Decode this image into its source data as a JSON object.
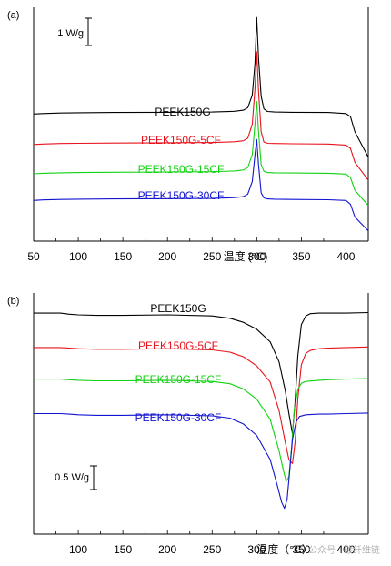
{
  "chart_data": [
    {
      "type": "line",
      "panel_label": "(a)",
      "title": "",
      "xlabel": "温度 (°C)",
      "ylabel": "",
      "xlim": [
        50,
        425
      ],
      "x_ticks": [
        50,
        100,
        150,
        200,
        250,
        300,
        350,
        400
      ],
      "grid": false,
      "scale_bar": {
        "label": "1 W/g",
        "size": 1
      },
      "series": [
        {
          "name": "PEEK150G",
          "color": "#000000",
          "x": [
            50,
            60,
            80,
            100,
            140,
            200,
            250,
            275,
            285,
            290,
            295,
            298,
            300,
            302,
            305,
            308,
            312,
            320,
            340,
            380,
            400,
            405,
            410,
            425
          ],
          "y": [
            7.6,
            7.62,
            7.64,
            7.65,
            7.66,
            7.67,
            7.68,
            7.71,
            7.75,
            7.85,
            8.35,
            9.6,
            11.4,
            9.8,
            8.3,
            7.8,
            7.7,
            7.68,
            7.67,
            7.66,
            7.62,
            7.5,
            6.9,
            5.9
          ]
        },
        {
          "name": "PEEK150G-5CF",
          "color": "#e8131b",
          "x": [
            50,
            60,
            80,
            100,
            140,
            200,
            250,
            275,
            285,
            290,
            295,
            298,
            300,
            302,
            305,
            308,
            312,
            320,
            340,
            380,
            400,
            405,
            410,
            425
          ],
          "y": [
            6.4,
            6.42,
            6.44,
            6.45,
            6.46,
            6.47,
            6.48,
            6.51,
            6.55,
            6.65,
            7.2,
            8.6,
            10.05,
            8.5,
            6.9,
            6.5,
            6.45,
            6.44,
            6.43,
            6.42,
            6.38,
            6.25,
            5.7,
            5.0
          ]
        },
        {
          "name": "PEEK150G-15CF",
          "color": "#12d212",
          "x": [
            50,
            60,
            80,
            100,
            140,
            200,
            250,
            275,
            285,
            290,
            295,
            298,
            300,
            302,
            305,
            308,
            312,
            320,
            340,
            380,
            400,
            405,
            410,
            425
          ],
          "y": [
            5.25,
            5.27,
            5.29,
            5.3,
            5.31,
            5.32,
            5.33,
            5.36,
            5.4,
            5.5,
            6.0,
            7.2,
            8.1,
            6.9,
            5.6,
            5.35,
            5.3,
            5.29,
            5.28,
            5.27,
            5.24,
            5.1,
            4.6,
            4.0
          ]
        },
        {
          "name": "PEEK150G-30CF",
          "color": "#1212d2",
          "x": [
            50,
            60,
            80,
            100,
            140,
            200,
            250,
            275,
            285,
            290,
            295,
            298,
            300,
            302,
            305,
            308,
            312,
            320,
            340,
            380,
            400,
            405,
            410,
            425
          ],
          "y": [
            4.2,
            4.22,
            4.24,
            4.25,
            4.26,
            4.27,
            4.28,
            4.31,
            4.35,
            4.45,
            4.95,
            6.0,
            6.6,
            5.6,
            4.5,
            4.3,
            4.26,
            4.25,
            4.24,
            4.23,
            4.2,
            4.05,
            3.55,
            3.0
          ]
        }
      ]
    },
    {
      "type": "line",
      "panel_label": "(b)",
      "title": "",
      "xlabel": "温度（°C）",
      "ylabel": "",
      "xlim": [
        50,
        425
      ],
      "x_ticks": [
        100,
        150,
        200,
        250,
        300,
        350,
        400
      ],
      "grid": false,
      "scale_bar": {
        "label": "0.5 W/g",
        "size": 0.5
      },
      "series": [
        {
          "name": "PEEK150G",
          "color": "#000000",
          "x": [
            50,
            80,
            90,
            100,
            120,
            150,
            200,
            250,
            270,
            285,
            300,
            315,
            325,
            332,
            336,
            340,
            343,
            346,
            350,
            355,
            360,
            370,
            380,
            400,
            425
          ],
          "y": [
            3.95,
            3.95,
            3.93,
            3.92,
            3.91,
            3.91,
            3.92,
            3.9,
            3.86,
            3.79,
            3.67,
            3.45,
            3.1,
            2.6,
            2.2,
            1.85,
            2.4,
            3.2,
            3.75,
            3.9,
            3.94,
            3.95,
            3.95,
            3.95,
            3.96
          ]
        },
        {
          "name": "PEEK150G-5CF",
          "color": "#e8131b",
          "x": [
            50,
            80,
            90,
            100,
            120,
            150,
            200,
            250,
            270,
            285,
            300,
            315,
            325,
            332,
            336,
            340,
            343,
            346,
            350,
            355,
            360,
            370,
            380,
            400,
            425
          ],
          "y": [
            3.35,
            3.35,
            3.34,
            3.33,
            3.32,
            3.32,
            3.33,
            3.31,
            3.27,
            3.19,
            3.03,
            2.75,
            2.25,
            1.7,
            1.4,
            1.33,
            1.7,
            2.45,
            3.05,
            3.25,
            3.3,
            3.33,
            3.34,
            3.35,
            3.36
          ]
        },
        {
          "name": "PEEK150G-15CF",
          "color": "#12d212",
          "x": [
            50,
            80,
            90,
            100,
            120,
            150,
            200,
            250,
            270,
            285,
            300,
            315,
            325,
            330,
            333,
            336,
            339,
            342,
            346,
            350,
            355,
            370,
            380,
            400,
            425
          ],
          "y": [
            2.8,
            2.8,
            2.79,
            2.78,
            2.77,
            2.77,
            2.78,
            2.76,
            2.72,
            2.63,
            2.45,
            2.1,
            1.55,
            1.2,
            1.02,
            1.1,
            1.6,
            2.25,
            2.62,
            2.73,
            2.76,
            2.78,
            2.79,
            2.8,
            2.81
          ]
        },
        {
          "name": "PEEK150G-30CF",
          "color": "#1212d2",
          "x": [
            50,
            80,
            90,
            100,
            120,
            150,
            200,
            250,
            270,
            285,
            300,
            315,
            323,
            328,
            331,
            334,
            337,
            340,
            344,
            348,
            355,
            370,
            380,
            400,
            425
          ],
          "y": [
            2.2,
            2.2,
            2.19,
            2.18,
            2.17,
            2.17,
            2.18,
            2.16,
            2.12,
            2.02,
            1.82,
            1.4,
            0.95,
            0.65,
            0.55,
            0.7,
            1.2,
            1.75,
            2.05,
            2.15,
            2.18,
            2.19,
            2.19,
            2.2,
            2.21
          ]
        }
      ]
    }
  ],
  "watermark": {
    "text": "公众号 · 碳纤维链"
  }
}
